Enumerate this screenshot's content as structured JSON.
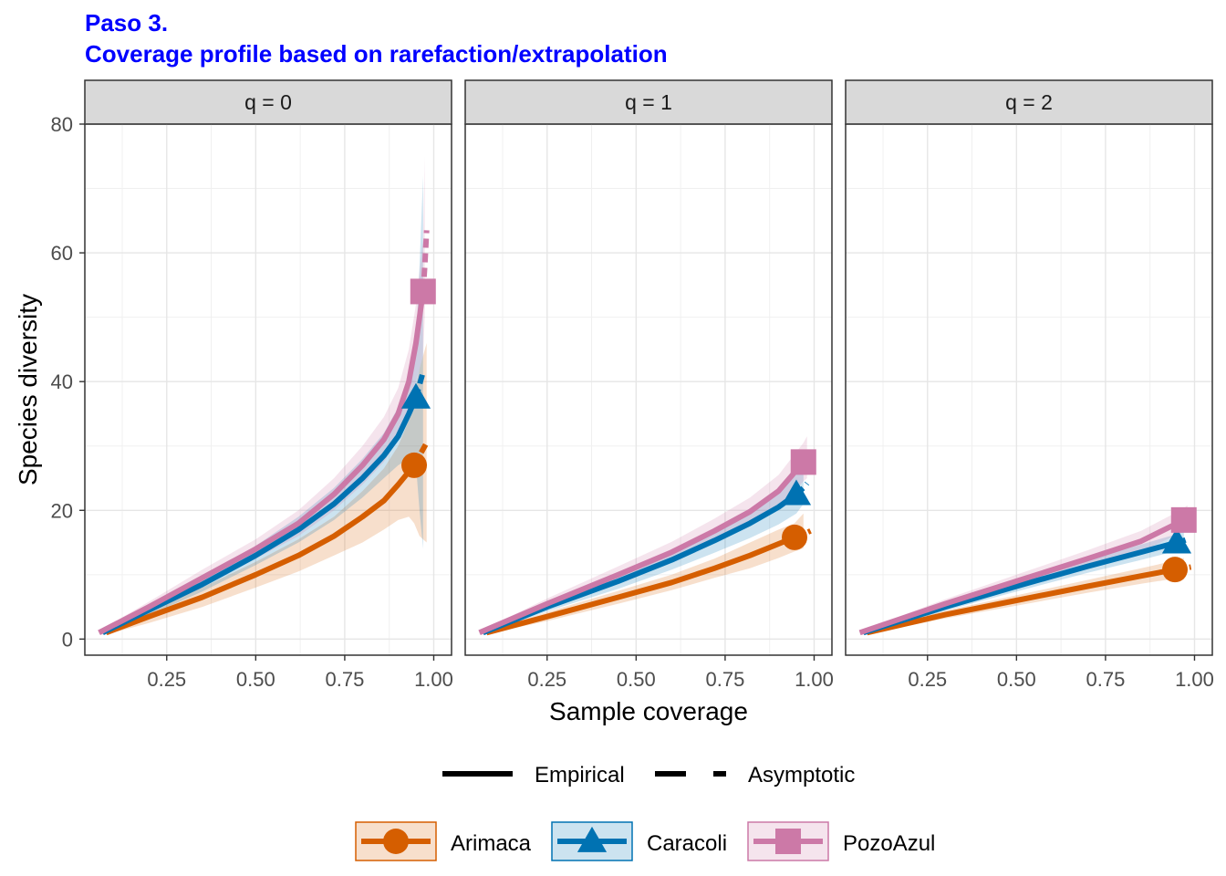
{
  "title": "Paso 3.",
  "subtitle": "Coverage profile based on rarefaction/extrapolation",
  "chart_data": {
    "type": "line",
    "xlabel": "Sample coverage",
    "ylabel": "Species diversity",
    "xlim": [
      0.02,
      1.05
    ],
    "ylim": [
      -2.5,
      80
    ],
    "x_ticks": [
      "0.25",
      "0.50",
      "0.75",
      "1.00"
    ],
    "x_tick_values": [
      0.25,
      0.5,
      0.75,
      1.0
    ],
    "y_ticks": [
      "0",
      "20",
      "40",
      "60",
      "80"
    ],
    "y_tick_values": [
      0,
      20,
      40,
      60,
      80
    ],
    "grid": true,
    "legend_position": "bottom",
    "linetype_legend": [
      {
        "label": "Empirical",
        "style": "solid"
      },
      {
        "label": "Asymptotic",
        "style": "dashed"
      }
    ],
    "series_style": [
      {
        "name": "Arimaca",
        "color": "#D55E00",
        "marker": "circle"
      },
      {
        "name": "Caracoli",
        "color": "#0072B2",
        "marker": "triangle"
      },
      {
        "name": "PozoAzul",
        "color": "#CC79A7",
        "marker": "square"
      }
    ],
    "panels": [
      {
        "label": "q = 0",
        "series": [
          {
            "name": "Arimaca",
            "rarefaction": {
              "x": [
                0.08,
                0.2,
                0.35,
                0.5,
                0.62,
                0.72,
                0.8,
                0.86,
                0.9,
                0.93,
                0.945
              ],
              "y": [
                1,
                3.5,
                6.5,
                10,
                13,
                16,
                19,
                21.5,
                24,
                26,
                27
              ]
            },
            "extrapolation": {
              "x": [
                0.945,
                0.96,
                0.98
              ],
              "y": [
                27,
                28.5,
                30.5
              ]
            },
            "observed": {
              "x": 0.945,
              "y": 27
            },
            "ci_upper": [
              1.3,
              4.5,
              8,
              12,
              15.5,
              19,
              23,
              26.5,
              30,
              34,
              38,
              42,
              46
            ],
            "ci_lower": [
              0.7,
              2.5,
              5,
              8,
              10.5,
              13,
              15,
              17,
              18.5,
              19,
              18,
              16,
              15
            ]
          },
          {
            "name": "Caracoli",
            "rarefaction": {
              "x": [
                0.07,
                0.2,
                0.35,
                0.5,
                0.62,
                0.72,
                0.8,
                0.86,
                0.9,
                0.93,
                0.95
              ],
              "y": [
                1,
                4.5,
                8.5,
                13,
                17,
                21,
                25,
                28.5,
                31.5,
                35,
                37.5
              ]
            },
            "extrapolation": {
              "x": [
                0.95,
                0.96,
                0.97
              ],
              "y": [
                37.5,
                39.5,
                41.5
              ]
            },
            "observed": {
              "x": 0.95,
              "y": 37.5
            },
            "ci_upper": [
              1.3,
              5.3,
              9.6,
              14.5,
              19,
              23.5,
              28,
              32,
              36,
              41,
              46,
              58,
              72
            ],
            "ci_lower": [
              0.7,
              3.7,
              7.4,
              11.5,
              15,
              18.5,
              22,
              25,
              27,
              28,
              27,
              20,
              14
            ]
          },
          {
            "name": "PozoAzul",
            "rarefaction": {
              "x": [
                0.06,
                0.2,
                0.35,
                0.5,
                0.62,
                0.72,
                0.8,
                0.86,
                0.9,
                0.93,
                0.95,
                0.97
              ],
              "y": [
                1,
                5,
                9.5,
                14,
                18,
                22.5,
                27,
                31,
                35,
                40,
                46,
                54
              ]
            },
            "extrapolation": {
              "x": [
                0.97,
                0.975,
                0.98
              ],
              "y": [
                54,
                58,
                63.5
              ]
            },
            "observed": {
              "x": 0.97,
              "y": 54
            },
            "ci_upper": [
              1.3,
              5.8,
              10.8,
              15.5,
              20,
              25,
              30,
              34.5,
              39,
              45,
              52,
              62,
              75
            ],
            "ci_lower": [
              0.7,
              4.2,
              8.2,
              12.5,
              16,
              20,
              24,
              27.5,
              31,
              35,
              40,
              44,
              50
            ]
          }
        ]
      },
      {
        "label": "q = 1",
        "series": [
          {
            "name": "Arimaca",
            "rarefaction": {
              "x": [
                0.08,
                0.25,
                0.45,
                0.6,
                0.72,
                0.82,
                0.9,
                0.945
              ],
              "y": [
                1,
                3.5,
                6.5,
                8.8,
                11,
                13,
                14.8,
                15.8
              ]
            },
            "extrapolation": {
              "x": [
                0.945,
                0.97,
                0.99
              ],
              "y": [
                15.8,
                16.3,
                16.8
              ]
            },
            "observed": {
              "x": 0.945,
              "y": 15.8
            },
            "ci_upper": [
              1.2,
              4.2,
              7.5,
              10,
              12.5,
              15,
              17,
              18,
              19.5
            ],
            "ci_lower": [
              0.8,
              2.8,
              5.5,
              7.6,
              9.5,
              11,
              12.6,
              13.6,
              14.1
            ]
          },
          {
            "name": "Caracoli",
            "rarefaction": {
              "x": [
                0.07,
                0.25,
                0.45,
                0.6,
                0.72,
                0.82,
                0.9,
                0.95
              ],
              "y": [
                1,
                5,
                9,
                12.3,
                15.3,
                18,
                20.5,
                22.5
              ]
            },
            "extrapolation": {
              "x": [
                0.95,
                0.97,
                0.98
              ],
              "y": [
                22.5,
                23.5,
                24.2
              ]
            },
            "observed": {
              "x": 0.95,
              "y": 22.5
            },
            "ci_upper": [
              1.2,
              5.7,
              10.2,
              13.8,
              17.2,
              20.3,
              23.2,
              25.5,
              27
            ],
            "ci_lower": [
              0.8,
              4.3,
              7.8,
              10.8,
              13.4,
              15.7,
              17.8,
              19.5,
              21
            ]
          },
          {
            "name": "PozoAzul",
            "rarefaction": {
              "x": [
                0.06,
                0.25,
                0.45,
                0.6,
                0.72,
                0.82,
                0.9,
                0.97
              ],
              "y": [
                1,
                5.5,
                10,
                13.5,
                16.8,
                19.8,
                23,
                27.5
              ]
            },
            "extrapolation": {
              "x": [
                0.97,
                0.98
              ],
              "y": [
                27.5,
                28
              ]
            },
            "observed": {
              "x": 0.97,
              "y": 27.5
            },
            "ci_upper": [
              1.2,
              6.3,
              11.3,
              15.1,
              18.7,
              22,
              25.5,
              30.5,
              31.5
            ],
            "ci_lower": [
              0.8,
              4.7,
              8.7,
              11.9,
              14.9,
              17.6,
              20.5,
              24.5,
              25
            ]
          }
        ]
      },
      {
        "label": "q = 2",
        "series": [
          {
            "name": "Arimaca",
            "rarefaction": {
              "x": [
                0.08,
                0.3,
                0.5,
                0.7,
                0.85,
                0.945
              ],
              "y": [
                1,
                3.8,
                6,
                8.2,
                9.8,
                10.8
              ]
            },
            "extrapolation": {
              "x": [
                0.945,
                0.97,
                0.99
              ],
              "y": [
                10.8,
                11,
                11.2
              ]
            },
            "observed": {
              "x": 0.945,
              "y": 10.8
            },
            "ci_upper": [
              1.2,
              4.4,
              6.8,
              9.2,
              11,
              12.2,
              12.6
            ],
            "ci_lower": [
              0.8,
              3.2,
              5.2,
              7.2,
              8.6,
              9.4,
              9.8
            ]
          },
          {
            "name": "Caracoli",
            "rarefaction": {
              "x": [
                0.07,
                0.3,
                0.5,
                0.7,
                0.85,
                0.95
              ],
              "y": [
                1,
                5,
                8.2,
                11.3,
                13.5,
                15
              ]
            },
            "extrapolation": {
              "x": [
                0.95,
                0.97,
                0.98
              ],
              "y": [
                15,
                15.3,
                15.5
              ]
            },
            "observed": {
              "x": 0.95,
              "y": 15
            },
            "ci_upper": [
              1.2,
              5.6,
              9,
              12.3,
              14.7,
              16.3,
              16.8
            ],
            "ci_lower": [
              0.8,
              4.4,
              7.4,
              10.3,
              12.3,
              13.7,
              14.2
            ]
          },
          {
            "name": "PozoAzul",
            "rarefaction": {
              "x": [
                0.06,
                0.3,
                0.5,
                0.7,
                0.85,
                0.97
              ],
              "y": [
                1,
                5.5,
                9,
                12.5,
                15.2,
                18.5
              ]
            },
            "extrapolation": {
              "x": [
                0.97,
                0.98
              ],
              "y": [
                18.5,
                18.8
              ]
            },
            "observed": {
              "x": 0.97,
              "y": 18.5
            },
            "ci_upper": [
              1.2,
              6.2,
              10,
              13.8,
              16.8,
              20.3,
              20.8
            ],
            "ci_lower": [
              0.8,
              4.8,
              8,
              11.2,
              13.6,
              16.7,
              17
            ]
          }
        ]
      }
    ]
  }
}
